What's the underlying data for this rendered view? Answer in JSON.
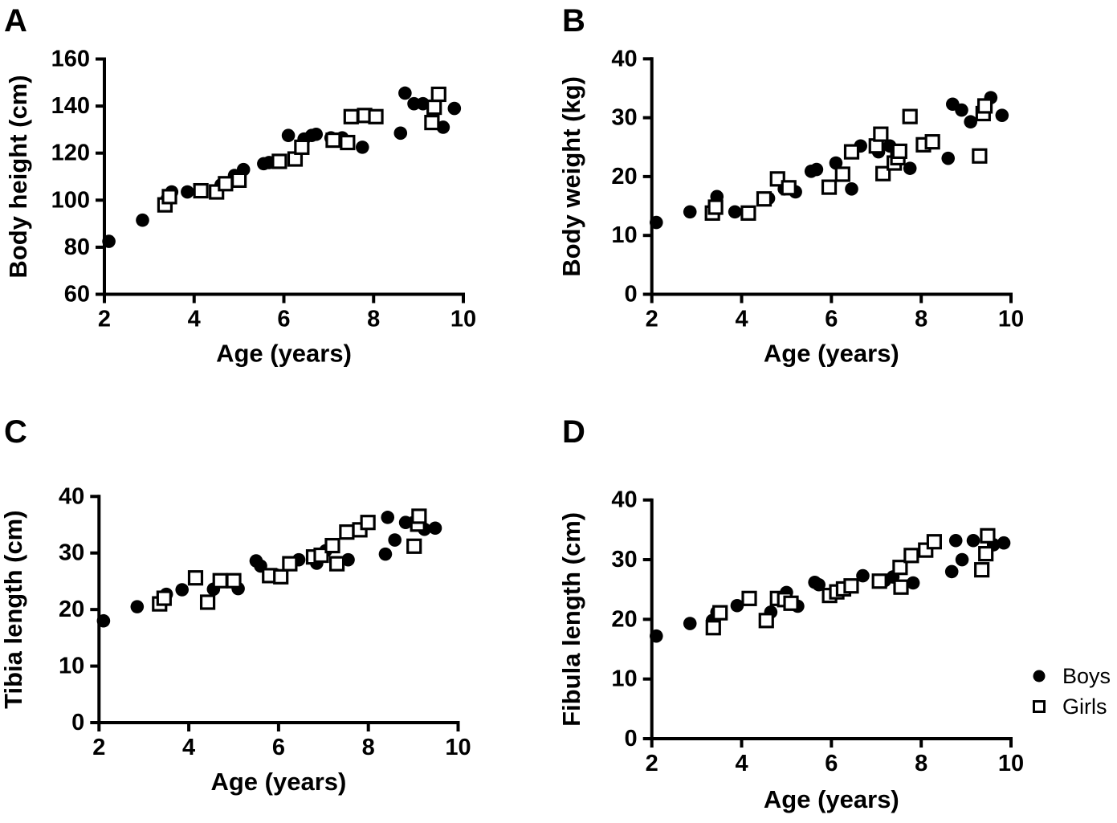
{
  "figure_title": "",
  "colors": {
    "marker": "#000000",
    "background": "#ffffff",
    "text": "#000000"
  },
  "legend": {
    "position": "bottom-right-of-panel-D",
    "items": [
      {
        "label": "Boys",
        "marker": "filled-circle"
      },
      {
        "label": "Girls",
        "marker": "open-square"
      }
    ]
  },
  "chart_data": [
    {
      "type": "scatter",
      "panel_label": "A",
      "title": "",
      "xlabel": "Age (years)",
      "ylabel": "Body height (cm)",
      "xlim": [
        2,
        10
      ],
      "ylim": [
        60,
        160
      ],
      "xticks": [
        2,
        4,
        6,
        8,
        10
      ],
      "yticks": [
        60,
        80,
        100,
        120,
        140,
        160
      ],
      "grid": false,
      "series": [
        {
          "name": "Boys",
          "marker": "filled-circle",
          "points": [
            [
              2.1,
              82.5
            ],
            [
              2.85,
              91.5
            ],
            [
              3.4,
              100.5
            ],
            [
              3.5,
              103.5
            ],
            [
              3.85,
              103.5
            ],
            [
              4.6,
              106.5
            ],
            [
              4.9,
              110.5
            ],
            [
              5.1,
              113
            ],
            [
              5.55,
              115.5
            ],
            [
              5.67,
              116
            ],
            [
              6.1,
              127.5
            ],
            [
              6.45,
              126
            ],
            [
              6.62,
              127.5
            ],
            [
              6.72,
              128
            ],
            [
              7.05,
              126.5
            ],
            [
              7.3,
              126.5
            ],
            [
              7.75,
              122.5
            ],
            [
              8.6,
              128.5
            ],
            [
              8.7,
              145.5
            ],
            [
              8.9,
              141
            ],
            [
              9.1,
              141
            ],
            [
              9.55,
              131
            ],
            [
              9.8,
              139
            ]
          ]
        },
        {
          "name": "Girls",
          "marker": "open-square",
          "points": [
            [
              3.35,
              98
            ],
            [
              3.45,
              101.5
            ],
            [
              4.15,
              104
            ],
            [
              4.5,
              103.5
            ],
            [
              4.7,
              107
            ],
            [
              5.0,
              108.5
            ],
            [
              5.9,
              116.5
            ],
            [
              6.25,
              117.5
            ],
            [
              6.4,
              122.5
            ],
            [
              7.1,
              125.5
            ],
            [
              7.42,
              124.5
            ],
            [
              7.5,
              135.5
            ],
            [
              7.8,
              136
            ],
            [
              8.05,
              135.5
            ],
            [
              9.3,
              133
            ],
            [
              9.35,
              139.5
            ],
            [
              9.45,
              145
            ]
          ]
        }
      ]
    },
    {
      "type": "scatter",
      "panel_label": "B",
      "title": "",
      "xlabel": "Age (years)",
      "ylabel": "Body weight (kg)",
      "xlim": [
        2,
        10
      ],
      "ylim": [
        0,
        40
      ],
      "xticks": [
        2,
        4,
        6,
        8,
        10
      ],
      "yticks": [
        0,
        10,
        20,
        30,
        40
      ],
      "grid": false,
      "series": [
        {
          "name": "Boys",
          "marker": "filled-circle",
          "points": [
            [
              2.1,
              12.2
            ],
            [
              2.85,
              14
            ],
            [
              3.4,
              15.2
            ],
            [
              3.45,
              16.6
            ],
            [
              3.85,
              14
            ],
            [
              4.6,
              16.3
            ],
            [
              4.95,
              17.9
            ],
            [
              5.2,
              17.4
            ],
            [
              5.55,
              20.9
            ],
            [
              5.67,
              21.2
            ],
            [
              6.1,
              22.3
            ],
            [
              6.45,
              17.9
            ],
            [
              6.65,
              25.2
            ],
            [
              7.05,
              24.2
            ],
            [
              7.3,
              25.2
            ],
            [
              7.75,
              21.4
            ],
            [
              8.6,
              23.1
            ],
            [
              8.7,
              32.3
            ],
            [
              8.9,
              31.3
            ],
            [
              9.1,
              29.3
            ],
            [
              9.55,
              33.4
            ],
            [
              9.8,
              30.4
            ]
          ]
        },
        {
          "name": "Girls",
          "marker": "open-square",
          "points": [
            [
              3.35,
              13.8
            ],
            [
              3.42,
              14.8
            ],
            [
              4.15,
              13.8
            ],
            [
              4.5,
              16.2
            ],
            [
              4.8,
              19.6
            ],
            [
              5.05,
              18.1
            ],
            [
              5.95,
              18.2
            ],
            [
              6.25,
              20.4
            ],
            [
              6.45,
              24.2
            ],
            [
              7.0,
              25.2
            ],
            [
              7.1,
              27.2
            ],
            [
              7.15,
              20.5
            ],
            [
              7.4,
              22.3
            ],
            [
              7.48,
              23.2
            ],
            [
              7.52,
              24.3
            ],
            [
              7.75,
              30.2
            ],
            [
              8.05,
              25.4
            ],
            [
              8.25,
              25.9
            ],
            [
              9.3,
              23.5
            ],
            [
              9.38,
              30.7
            ],
            [
              9.42,
              32
            ]
          ]
        }
      ]
    },
    {
      "type": "scatter",
      "panel_label": "C",
      "title": "",
      "xlabel": "Age (years)",
      "ylabel": "Tibia length (cm)",
      "xlim": [
        2,
        10
      ],
      "ylim": [
        0,
        40
      ],
      "xticks": [
        2,
        4,
        6,
        8,
        10
      ],
      "yticks": [
        0,
        10,
        20,
        30,
        40
      ],
      "grid": false,
      "series": [
        {
          "name": "Boys",
          "marker": "filled-circle",
          "points": [
            [
              2.1,
              18
            ],
            [
              2.85,
              20.5
            ],
            [
              3.4,
              21.5
            ],
            [
              3.5,
              22.7
            ],
            [
              3.85,
              23.5
            ],
            [
              4.55,
              23.6
            ],
            [
              4.9,
              25.1
            ],
            [
              5.1,
              23.7
            ],
            [
              5.5,
              28.6
            ],
            [
              5.6,
              27.7
            ],
            [
              5.95,
              26.1
            ],
            [
              6.45,
              28.8
            ],
            [
              6.85,
              28.2
            ],
            [
              7.05,
              30.4
            ],
            [
              7.55,
              28.8
            ],
            [
              8.38,
              29.8
            ],
            [
              8.43,
              36.3
            ],
            [
              8.59,
              32.3
            ],
            [
              8.83,
              35.4
            ],
            [
              9.25,
              34.2
            ],
            [
              9.49,
              34.4
            ]
          ]
        },
        {
          "name": "Girls",
          "marker": "open-square",
          "points": [
            [
              3.35,
              21
            ],
            [
              3.45,
              22
            ],
            [
              4.15,
              25.6
            ],
            [
              4.42,
              21.3
            ],
            [
              4.7,
              25.1
            ],
            [
              5.0,
              25.1
            ],
            [
              5.8,
              26
            ],
            [
              6.05,
              25.8
            ],
            [
              6.25,
              28.1
            ],
            [
              6.78,
              29.3
            ],
            [
              6.95,
              29.6
            ],
            [
              7.2,
              31.3
            ],
            [
              7.3,
              28.1
            ],
            [
              7.52,
              33.7
            ],
            [
              7.81,
              34.1
            ],
            [
              7.99,
              35.4
            ],
            [
              9.02,
              31.2
            ],
            [
              9.1,
              35.1
            ],
            [
              9.13,
              36.5
            ]
          ]
        }
      ]
    },
    {
      "type": "scatter",
      "panel_label": "D",
      "title": "",
      "xlabel": "Age (years)",
      "ylabel": "Fibula length (cm)",
      "xlim": [
        2,
        10
      ],
      "ylim": [
        0,
        40
      ],
      "xticks": [
        2,
        4,
        6,
        8,
        10
      ],
      "yticks": [
        0,
        10,
        20,
        30,
        40
      ],
      "grid": false,
      "series": [
        {
          "name": "Boys",
          "marker": "filled-circle",
          "points": [
            [
              2.1,
              17.2
            ],
            [
              2.85,
              19.3
            ],
            [
              3.35,
              19.8
            ],
            [
              3.45,
              21.2
            ],
            [
              3.9,
              22.3
            ],
            [
              4.65,
              21.2
            ],
            [
              5.0,
              24.5
            ],
            [
              5.25,
              22.2
            ],
            [
              5.63,
              26.2
            ],
            [
              5.72,
              25.8
            ],
            [
              6.7,
              27.3
            ],
            [
              7.1,
              26.4
            ],
            [
              7.19,
              26.5
            ],
            [
              7.37,
              27.1
            ],
            [
              7.82,
              26.1
            ],
            [
              8.68,
              28
            ],
            [
              8.77,
              33.2
            ],
            [
              8.91,
              30
            ],
            [
              9.16,
              33.2
            ],
            [
              9.61,
              32.5
            ],
            [
              9.84,
              32.8
            ]
          ]
        },
        {
          "name": "Girls",
          "marker": "open-square",
          "points": [
            [
              3.37,
              18.6
            ],
            [
              3.52,
              21.1
            ],
            [
              4.17,
              23.5
            ],
            [
              4.55,
              19.8
            ],
            [
              4.8,
              23.5
            ],
            [
              4.96,
              23.3
            ],
            [
              5.1,
              22.7
            ],
            [
              5.96,
              24
            ],
            [
              6.12,
              24.6
            ],
            [
              6.27,
              25.1
            ],
            [
              6.44,
              25.6
            ],
            [
              7.07,
              26.4
            ],
            [
              7.53,
              28.7
            ],
            [
              7.55,
              25.4
            ],
            [
              7.78,
              30.7
            ],
            [
              8.1,
              31.6
            ],
            [
              8.29,
              33
            ],
            [
              9.35,
              28.3
            ],
            [
              9.44,
              31
            ],
            [
              9.48,
              34
            ]
          ]
        }
      ]
    }
  ]
}
